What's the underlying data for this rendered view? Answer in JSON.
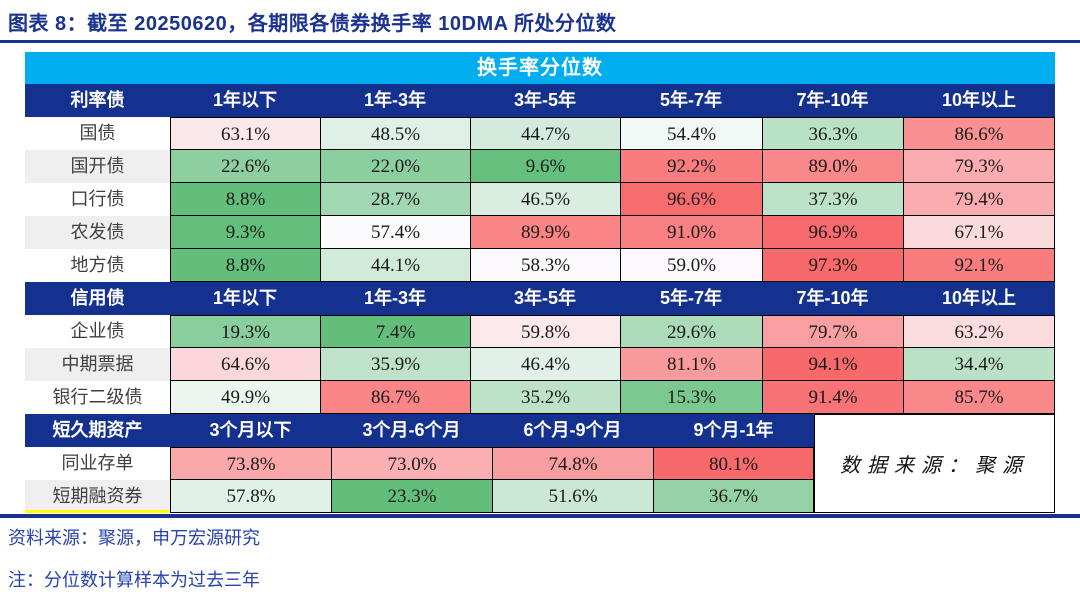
{
  "title": "图表 8：截至 20250620，各期限各债券换手率 10DMA 所处分位数",
  "footer": {
    "source": "资料来源：聚源，申万宏源研究",
    "note": "注：分位数计算样本为过去三年"
  },
  "colors": {
    "title_blue": "#1B3390",
    "header_cyan": "#00AEEF",
    "header_navy": "#15318F",
    "stripe_gray": "#EFEFEF",
    "highlight_yellow": "#FFFF00",
    "scale_low_green": "#63BE7B",
    "scale_mid_white": "#FCFCFF",
    "scale_high_red": "#F8696B"
  },
  "chart_data": {
    "type": "heatmap",
    "title": "换手率分位数",
    "unit": "%",
    "value_range": [
      0,
      100
    ],
    "color_scale": {
      "low": "#63BE7B",
      "mid": "#FCFCFF",
      "high": "#F8696B",
      "midpoint_rule": "per-section median"
    },
    "data_source_note": "数据来源：聚源",
    "sections": [
      {
        "name": "利率债",
        "columns": [
          "1年以下",
          "1年-3年",
          "3年-5年",
          "5年-7年",
          "7年-10年",
          "10年以上"
        ],
        "rows": [
          {
            "label": "国债",
            "values": [
              63.1,
              48.5,
              44.7,
              54.4,
              36.3,
              86.6
            ]
          },
          {
            "label": "国开债",
            "values": [
              22.6,
              22.0,
              9.6,
              92.2,
              89.0,
              79.3
            ]
          },
          {
            "label": "口行债",
            "values": [
              8.8,
              28.7,
              46.5,
              96.6,
              37.3,
              79.4
            ]
          },
          {
            "label": "农发债",
            "values": [
              9.3,
              57.4,
              89.9,
              91.0,
              96.9,
              67.1
            ]
          },
          {
            "label": "地方债",
            "values": [
              8.8,
              44.1,
              58.3,
              59.0,
              97.3,
              92.1
            ]
          }
        ]
      },
      {
        "name": "信用债",
        "columns": [
          "1年以下",
          "1年-3年",
          "3年-5年",
          "5年-7年",
          "7年-10年",
          "10年以上"
        ],
        "rows": [
          {
            "label": "企业债",
            "values": [
              19.3,
              7.4,
              59.8,
              29.6,
              79.7,
              63.2
            ]
          },
          {
            "label": "中期票据",
            "values": [
              64.6,
              35.9,
              46.4,
              81.1,
              94.1,
              34.4
            ]
          },
          {
            "label": "银行二级债",
            "values": [
              49.9,
              86.7,
              35.2,
              15.3,
              91.4,
              85.7
            ]
          }
        ]
      },
      {
        "name": "短久期资产",
        "columns": [
          "3个月以下",
          "3个月-6个月",
          "6个月-9个月",
          "9个月-1年"
        ],
        "has_note_cell": true,
        "rows": [
          {
            "label": "同业存单",
            "values": [
              73.8,
              73.0,
              74.8,
              80.1
            ]
          },
          {
            "label": "短期融资券",
            "values": [
              57.8,
              23.3,
              51.6,
              36.7
            ],
            "highlighted": true
          }
        ]
      }
    ]
  }
}
